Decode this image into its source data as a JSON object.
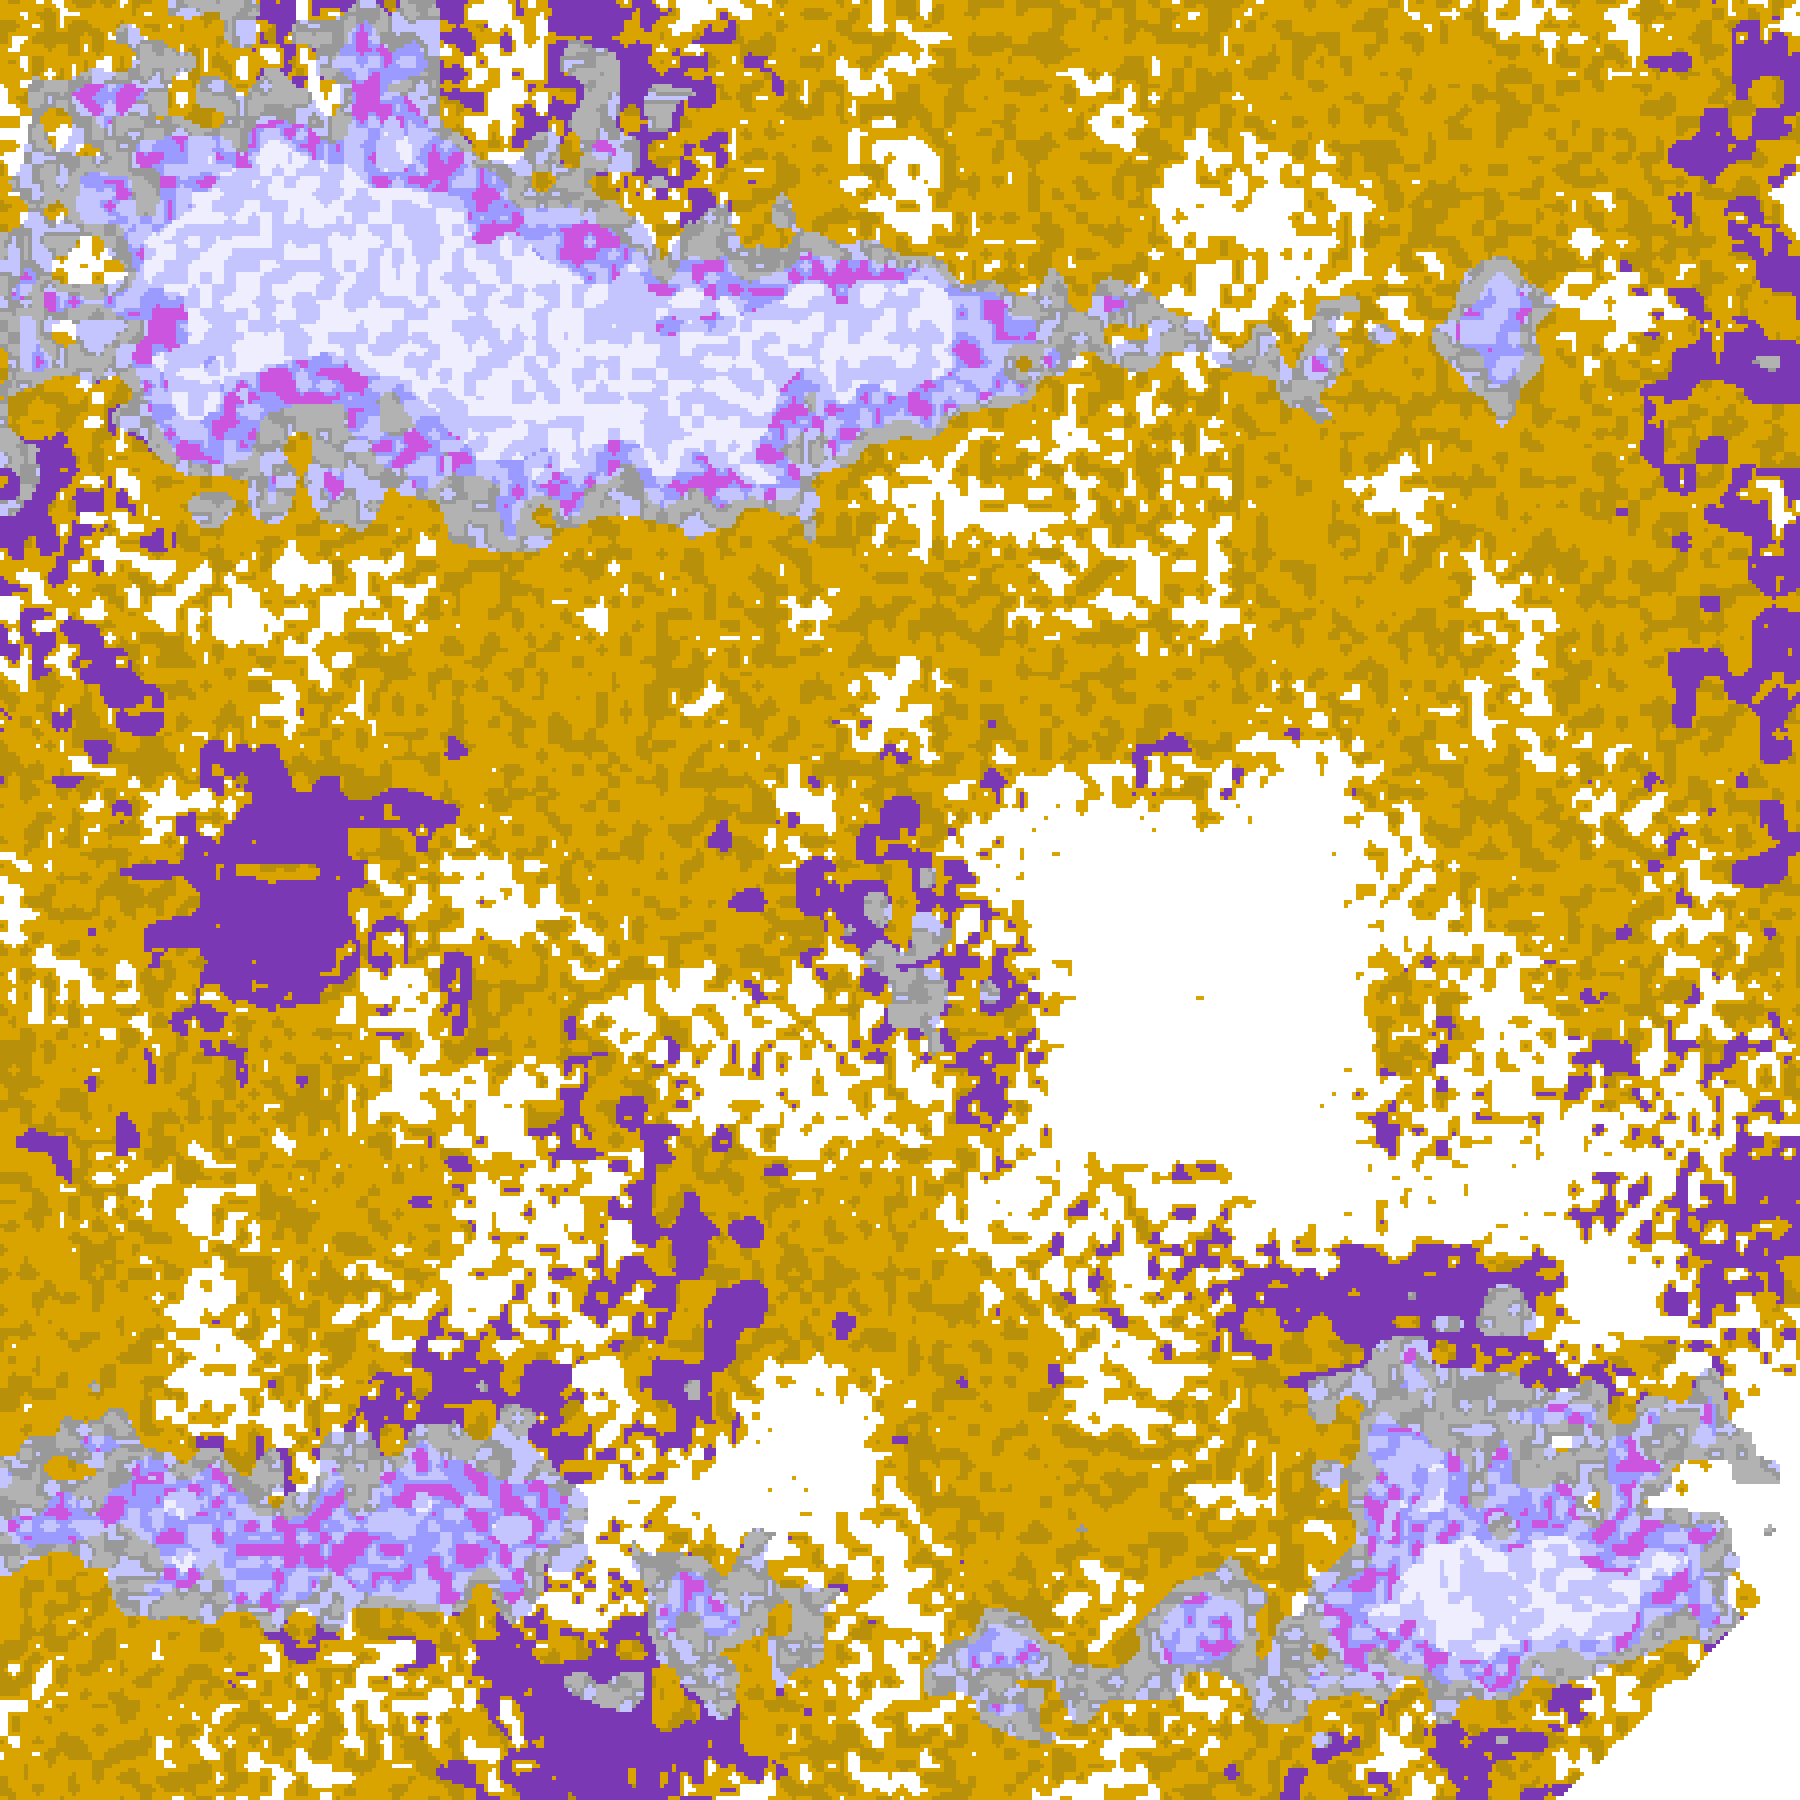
{
  "image": {
    "kind": "satellite cloud classification map",
    "palette": {
      "clear": "#ffffff",
      "gold": "#d9a400",
      "dark_gold": "#b8900a",
      "purple": "#7a38b4",
      "magenta": "#cc55e0",
      "lavender_light": "#eeeeff",
      "lavender": "#c4c4ff",
      "periwinkle": "#9a9aff",
      "gray_light": "#b2b2b2",
      "gray": "#999999"
    }
  }
}
